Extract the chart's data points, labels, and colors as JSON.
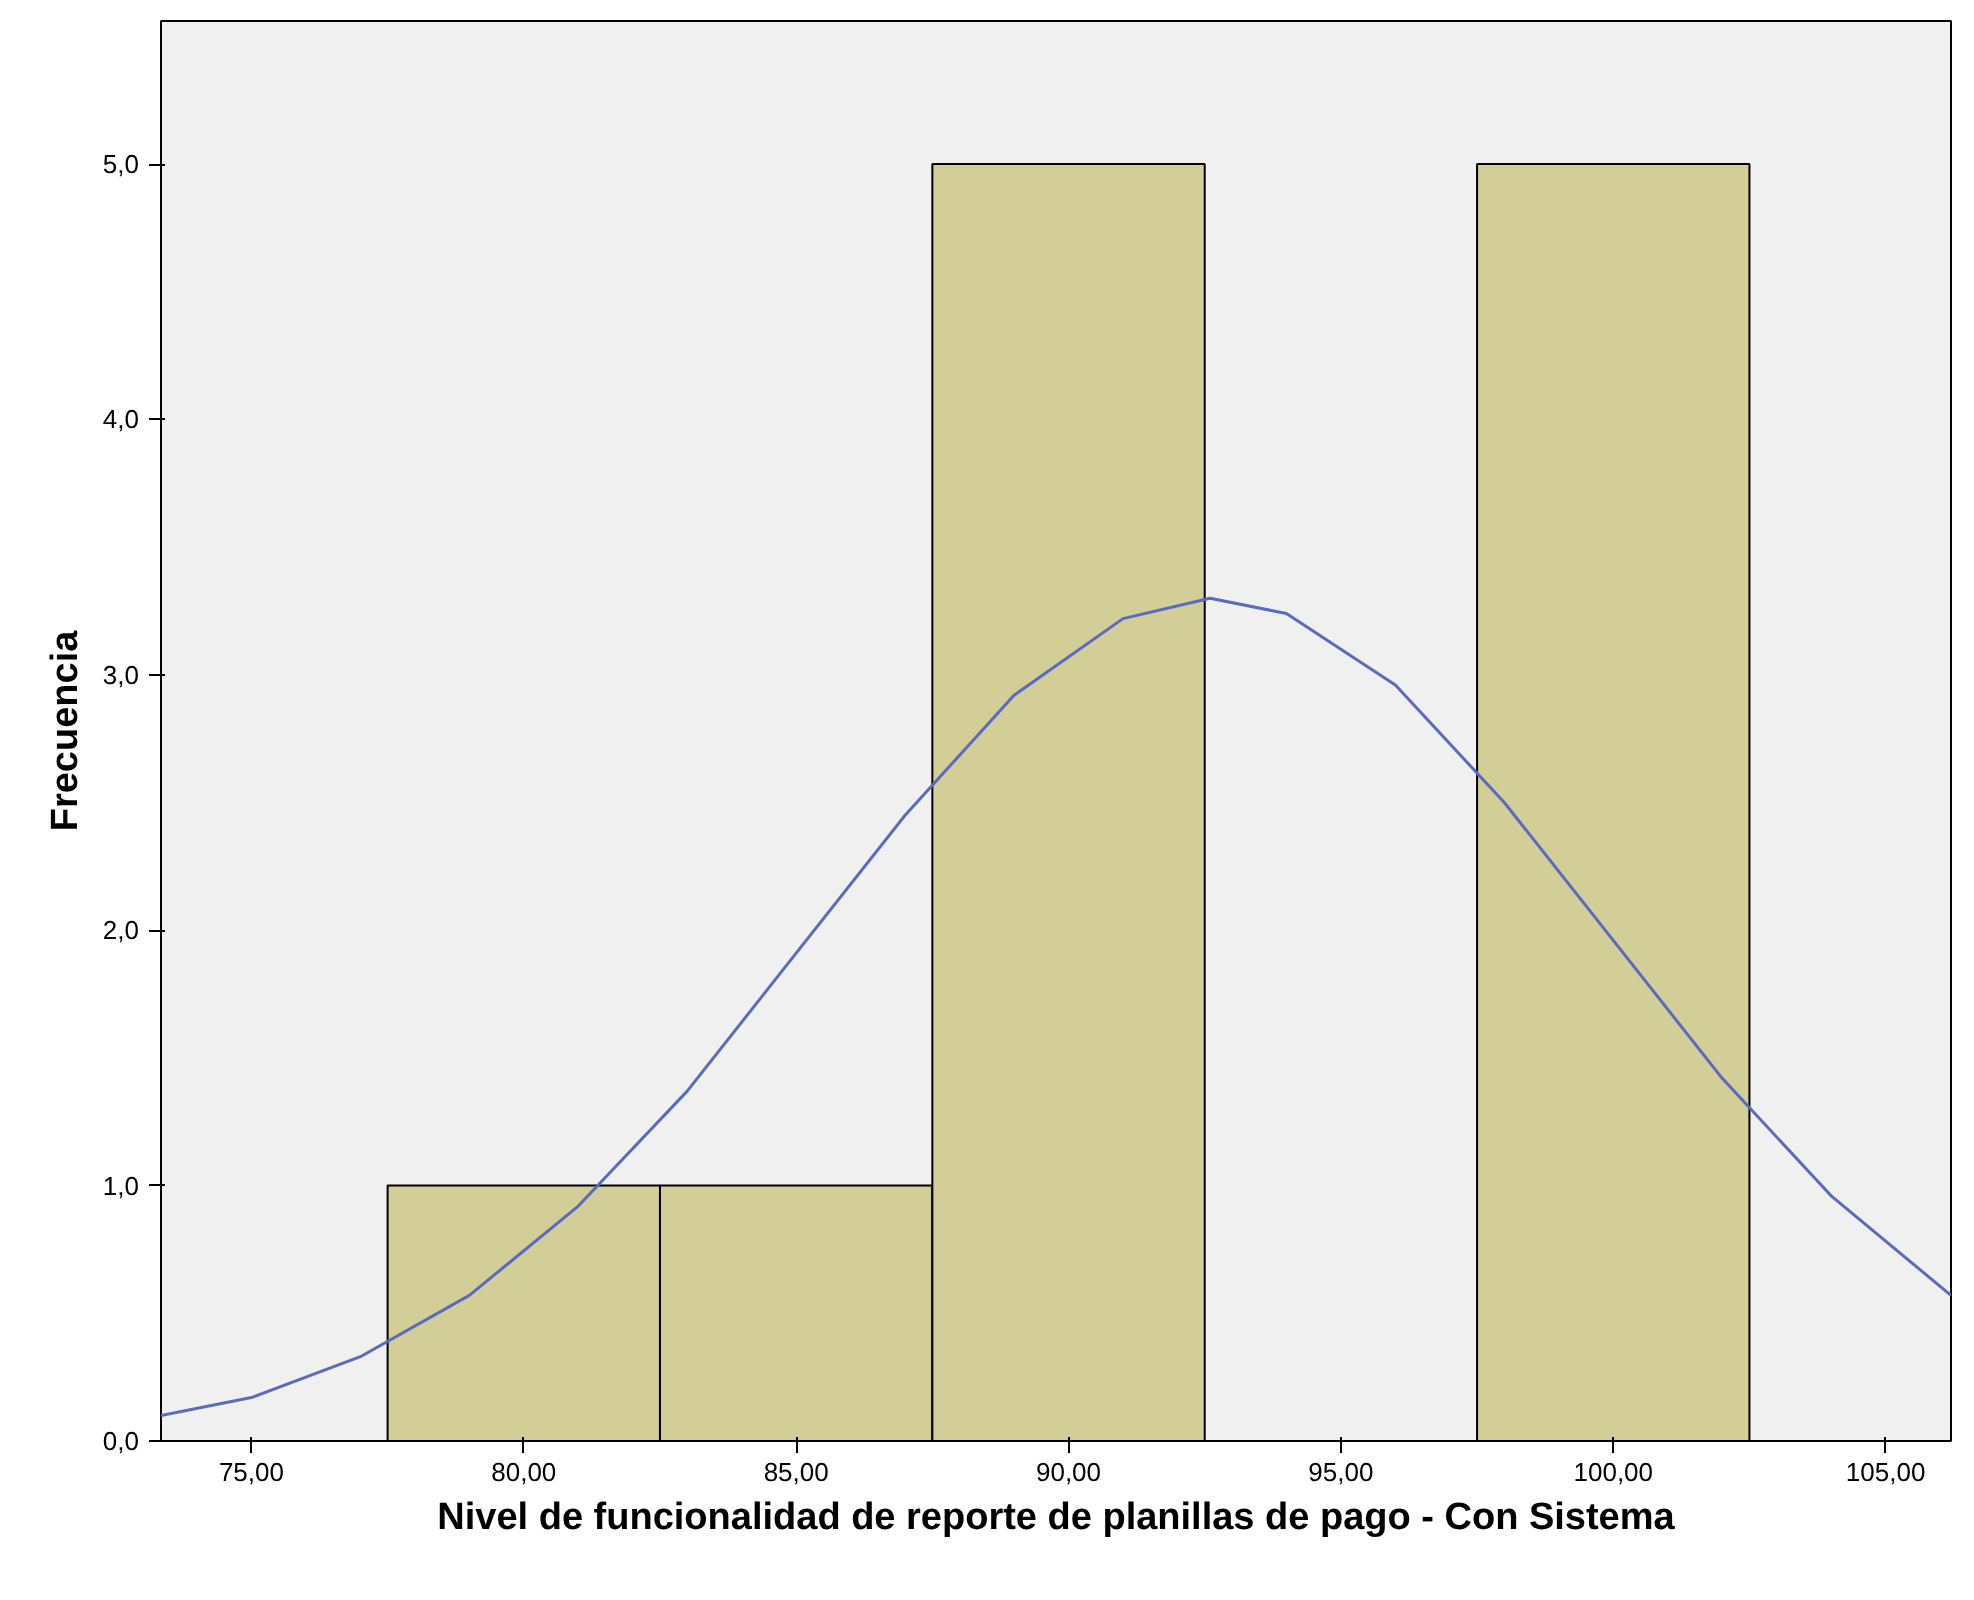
{
  "chart_data": {
    "type": "histogram",
    "xlabel": "Nivel de funcionalidad de reporte de planillas de pago - Con Sistema",
    "ylabel": "Frecuencia",
    "bins": [
      77.5,
      82.5,
      87.5,
      92.5,
      97.5,
      102.5
    ],
    "values": [
      1,
      1,
      5,
      0,
      5
    ],
    "color": "#d3ce97",
    "series": [
      {
        "type": "line",
        "color": "#5a6bbf",
        "x": [
          73.34,
          75,
          77,
          79,
          81,
          83,
          85,
          87,
          89,
          91,
          92.6,
          94,
          96,
          98,
          100,
          102,
          104,
          106.2
        ],
        "values": [
          0.1,
          0.17,
          0.33,
          0.57,
          0.92,
          1.37,
          1.91,
          2.45,
          2.92,
          3.22,
          3.3,
          3.24,
          2.96,
          2.5,
          1.96,
          1.42,
          0.96,
          0.57
        ]
      }
    ],
    "xlim": [
      73.34,
      106.2
    ],
    "ylim": [
      0,
      5.56
    ],
    "xticks": [
      {
        "value": 75,
        "label": "75,00"
      },
      {
        "value": 80,
        "label": "80,00"
      },
      {
        "value": 85,
        "label": "85,00"
      },
      {
        "value": 90,
        "label": "90,00"
      },
      {
        "value": 95,
        "label": "95,00"
      },
      {
        "value": 100,
        "label": "100,00"
      },
      {
        "value": 105,
        "label": "105,00"
      }
    ],
    "yticks": [
      {
        "value": 0,
        "label": "0,0"
      },
      {
        "value": 1,
        "label": "1,0"
      },
      {
        "value": 2,
        "label": "2,0"
      },
      {
        "value": 3,
        "label": "3,0"
      },
      {
        "value": 4,
        "label": "4,0"
      },
      {
        "value": 5,
        "label": "5,0"
      }
    ],
    "grid": false
  }
}
